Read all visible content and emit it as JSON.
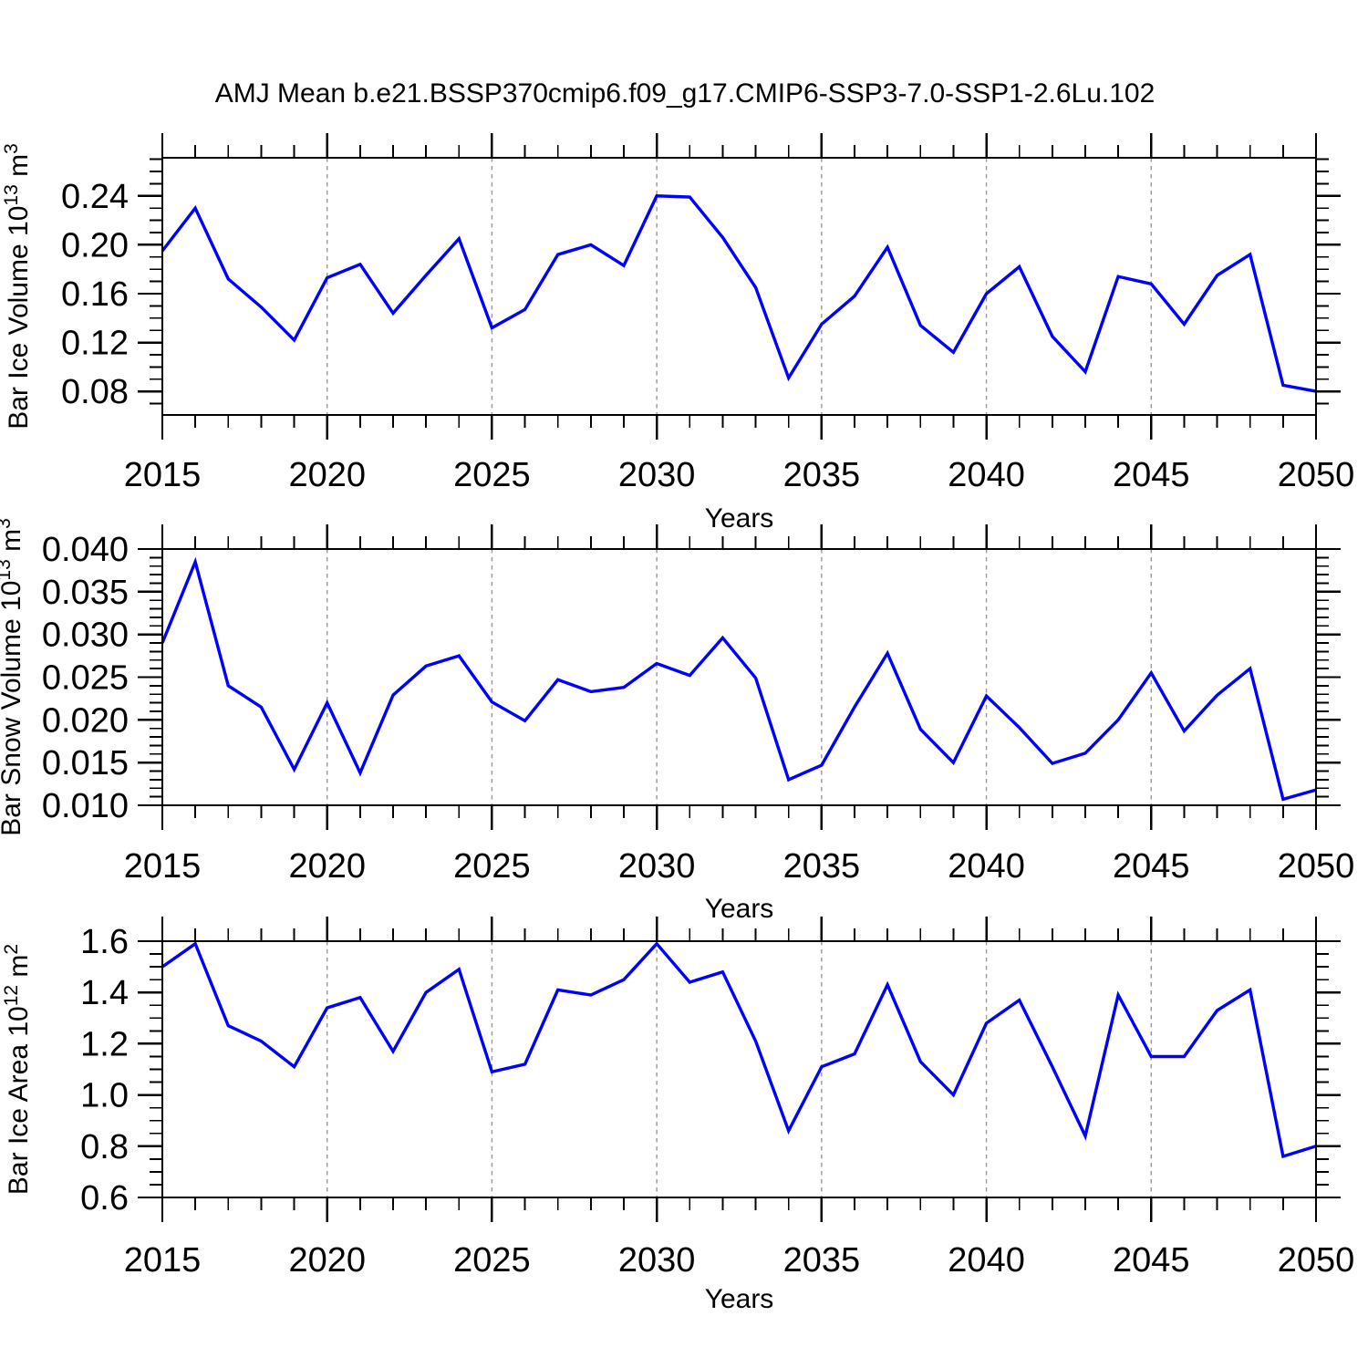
{
  "title": "AMJ Mean b.e21.BSSP370cmip6.f09_g17.CMIP6-SSP3-7.0-SSP1-2.6Lu.102",
  "colors": {
    "line": "#0000ff",
    "grid": "#999999",
    "axis": "#000000",
    "text": "#000000"
  },
  "chart_data": [
    {
      "type": "line",
      "name": "bar-ice-volume",
      "ylabel_text": "Bar Ice Volume 10^13 m^3",
      "ylabel_segments": [
        {
          "t": "Bar Ice Volume 10",
          "sup": false
        },
        {
          "t": "13",
          "sup": true
        },
        {
          "t": " m",
          "sup": false
        },
        {
          "t": "3",
          "sup": true
        }
      ],
      "xlabel": "Years",
      "xlim": [
        2015,
        2050
      ],
      "ylim": [
        0.0607,
        0.2712
      ],
      "ytick_values": [
        0.24,
        0.2,
        0.16,
        0.12,
        0.08
      ],
      "ytick_labels": [
        "0.24",
        "0.20",
        "0.16",
        "0.12",
        "0.08"
      ],
      "yminor_step": 0.01,
      "xtick_major_years": [
        2015,
        2020,
        2025,
        2030,
        2035,
        2040,
        2045,
        2050
      ],
      "xtick_labels": [
        "2015",
        "2020",
        "2025",
        "2030",
        "2035",
        "2040",
        "2045",
        "2050"
      ],
      "xminor_step": 1,
      "gridline_years": [
        2020,
        2025,
        2030,
        2035,
        2040,
        2045
      ],
      "grid": true,
      "legend": null,
      "x": [
        2015,
        2016,
        2017,
        2018,
        2019,
        2020,
        2021,
        2022,
        2023,
        2024,
        2025,
        2026,
        2027,
        2028,
        2029,
        2030,
        2031,
        2032,
        2033,
        2034,
        2035,
        2036,
        2037,
        2038,
        2039,
        2040,
        2041,
        2042,
        2043,
        2044,
        2045,
        2046,
        2047,
        2048,
        2049,
        2050
      ],
      "values": [
        0.195,
        0.23,
        0.172,
        0.149,
        0.122,
        0.173,
        0.184,
        0.144,
        0.175,
        0.205,
        0.132,
        0.147,
        0.192,
        0.2,
        0.183,
        0.24,
        0.239,
        0.206,
        0.165,
        0.091,
        0.135,
        0.158,
        0.198,
        0.134,
        0.112,
        0.16,
        0.182,
        0.125,
        0.096,
        0.174,
        0.168,
        0.135,
        0.175,
        0.192,
        0.085,
        0.08
      ]
    },
    {
      "type": "line",
      "name": "bar-snow-volume",
      "ylabel_text": "Bar Snow Volume 10^13 m^3",
      "ylabel_segments": [
        {
          "t": "Bar Snow Volume 10",
          "sup": false
        },
        {
          "t": "13",
          "sup": true
        },
        {
          "t": " m",
          "sup": false
        },
        {
          "t": "3",
          "sup": true
        }
      ],
      "xlabel": "Years",
      "xlim": [
        2015,
        2050
      ],
      "ylim": [
        0.01,
        0.04
      ],
      "ytick_values": [
        0.04,
        0.035,
        0.03,
        0.025,
        0.02,
        0.015,
        0.01
      ],
      "ytick_labels": [
        "0.040",
        "0.035",
        "0.030",
        "0.025",
        "0.020",
        "0.015",
        "0.010"
      ],
      "yminor_step": 0.001,
      "xtick_major_years": [
        2015,
        2020,
        2025,
        2030,
        2035,
        2040,
        2045,
        2050
      ],
      "xtick_labels": [
        "2015",
        "2020",
        "2025",
        "2030",
        "2035",
        "2040",
        "2045",
        "2050"
      ],
      "xminor_step": 1,
      "gridline_years": [
        2020,
        2025,
        2030,
        2035,
        2040,
        2045
      ],
      "grid": true,
      "legend": null,
      "x": [
        2015,
        2016,
        2017,
        2018,
        2019,
        2020,
        2021,
        2022,
        2023,
        2024,
        2025,
        2026,
        2027,
        2028,
        2029,
        2030,
        2031,
        2032,
        2033,
        2034,
        2035,
        2036,
        2037,
        2038,
        2039,
        2040,
        2041,
        2042,
        2043,
        2044,
        2045,
        2046,
        2047,
        2048,
        2049,
        2050
      ],
      "values": [
        0.029,
        0.0385,
        0.024,
        0.0215,
        0.0142,
        0.022,
        0.0138,
        0.0229,
        0.0263,
        0.0275,
        0.0221,
        0.0199,
        0.0247,
        0.0233,
        0.0238,
        0.0266,
        0.0252,
        0.0296,
        0.0249,
        0.013,
        0.0147,
        0.0215,
        0.0278,
        0.0189,
        0.015,
        0.0228,
        0.0191,
        0.0149,
        0.0161,
        0.02,
        0.0255,
        0.0187,
        0.0229,
        0.026,
        0.0107,
        0.0118
      ]
    },
    {
      "type": "line",
      "name": "bar-ice-area",
      "ylabel_text": "Bar Ice Area 10^12 m^2",
      "ylabel_segments": [
        {
          "t": "Bar Ice Area 10",
          "sup": false
        },
        {
          "t": "12",
          "sup": true
        },
        {
          "t": " m",
          "sup": false
        },
        {
          "t": "2",
          "sup": true
        }
      ],
      "xlabel": "Years",
      "xlim": [
        2015,
        2050
      ],
      "ylim": [
        0.6,
        1.6
      ],
      "ytick_values": [
        1.6,
        1.4,
        1.2,
        1.0,
        0.8,
        0.6
      ],
      "ytick_labels": [
        "1.6",
        "1.4",
        "1.2",
        "1.0",
        "0.8",
        "0.6"
      ],
      "yminor_step": 0.05,
      "xtick_major_years": [
        2015,
        2020,
        2025,
        2030,
        2035,
        2040,
        2045,
        2050
      ],
      "xtick_labels": [
        "2015",
        "2020",
        "2025",
        "2030",
        "2035",
        "2040",
        "2045",
        "2050"
      ],
      "xminor_step": 1,
      "gridline_years": [
        2020,
        2025,
        2030,
        2035,
        2040,
        2045
      ],
      "grid": true,
      "legend": null,
      "x": [
        2015,
        2016,
        2017,
        2018,
        2019,
        2020,
        2021,
        2022,
        2023,
        2024,
        2025,
        2026,
        2027,
        2028,
        2029,
        2030,
        2031,
        2032,
        2033,
        2034,
        2035,
        2036,
        2037,
        2038,
        2039,
        2040,
        2041,
        2042,
        2043,
        2044,
        2045,
        2046,
        2047,
        2048,
        2049,
        2050
      ],
      "values": [
        1.5,
        1.59,
        1.27,
        1.21,
        1.11,
        1.34,
        1.38,
        1.17,
        1.4,
        1.49,
        1.09,
        1.12,
        1.41,
        1.39,
        1.45,
        1.59,
        1.44,
        1.48,
        1.21,
        0.86,
        1.11,
        1.16,
        1.43,
        1.13,
        1.0,
        1.28,
        1.37,
        1.11,
        0.84,
        1.39,
        1.15,
        1.15,
        1.33,
        1.41,
        0.76,
        0.8
      ]
    }
  ]
}
